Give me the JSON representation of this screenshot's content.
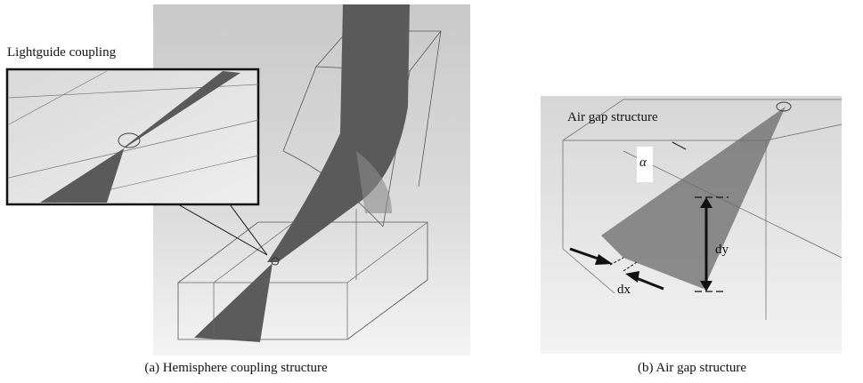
{
  "figure": {
    "panel_a": {
      "inset_label": "Lightguide coupling",
      "caption": "(a) Hemisphere coupling structure"
    },
    "panel_b": {
      "gap_label": "Air gap structure",
      "angle_label": "α",
      "dy_label": "dy",
      "dx_label": "dx",
      "caption": "(b) Air gap structure"
    }
  }
}
